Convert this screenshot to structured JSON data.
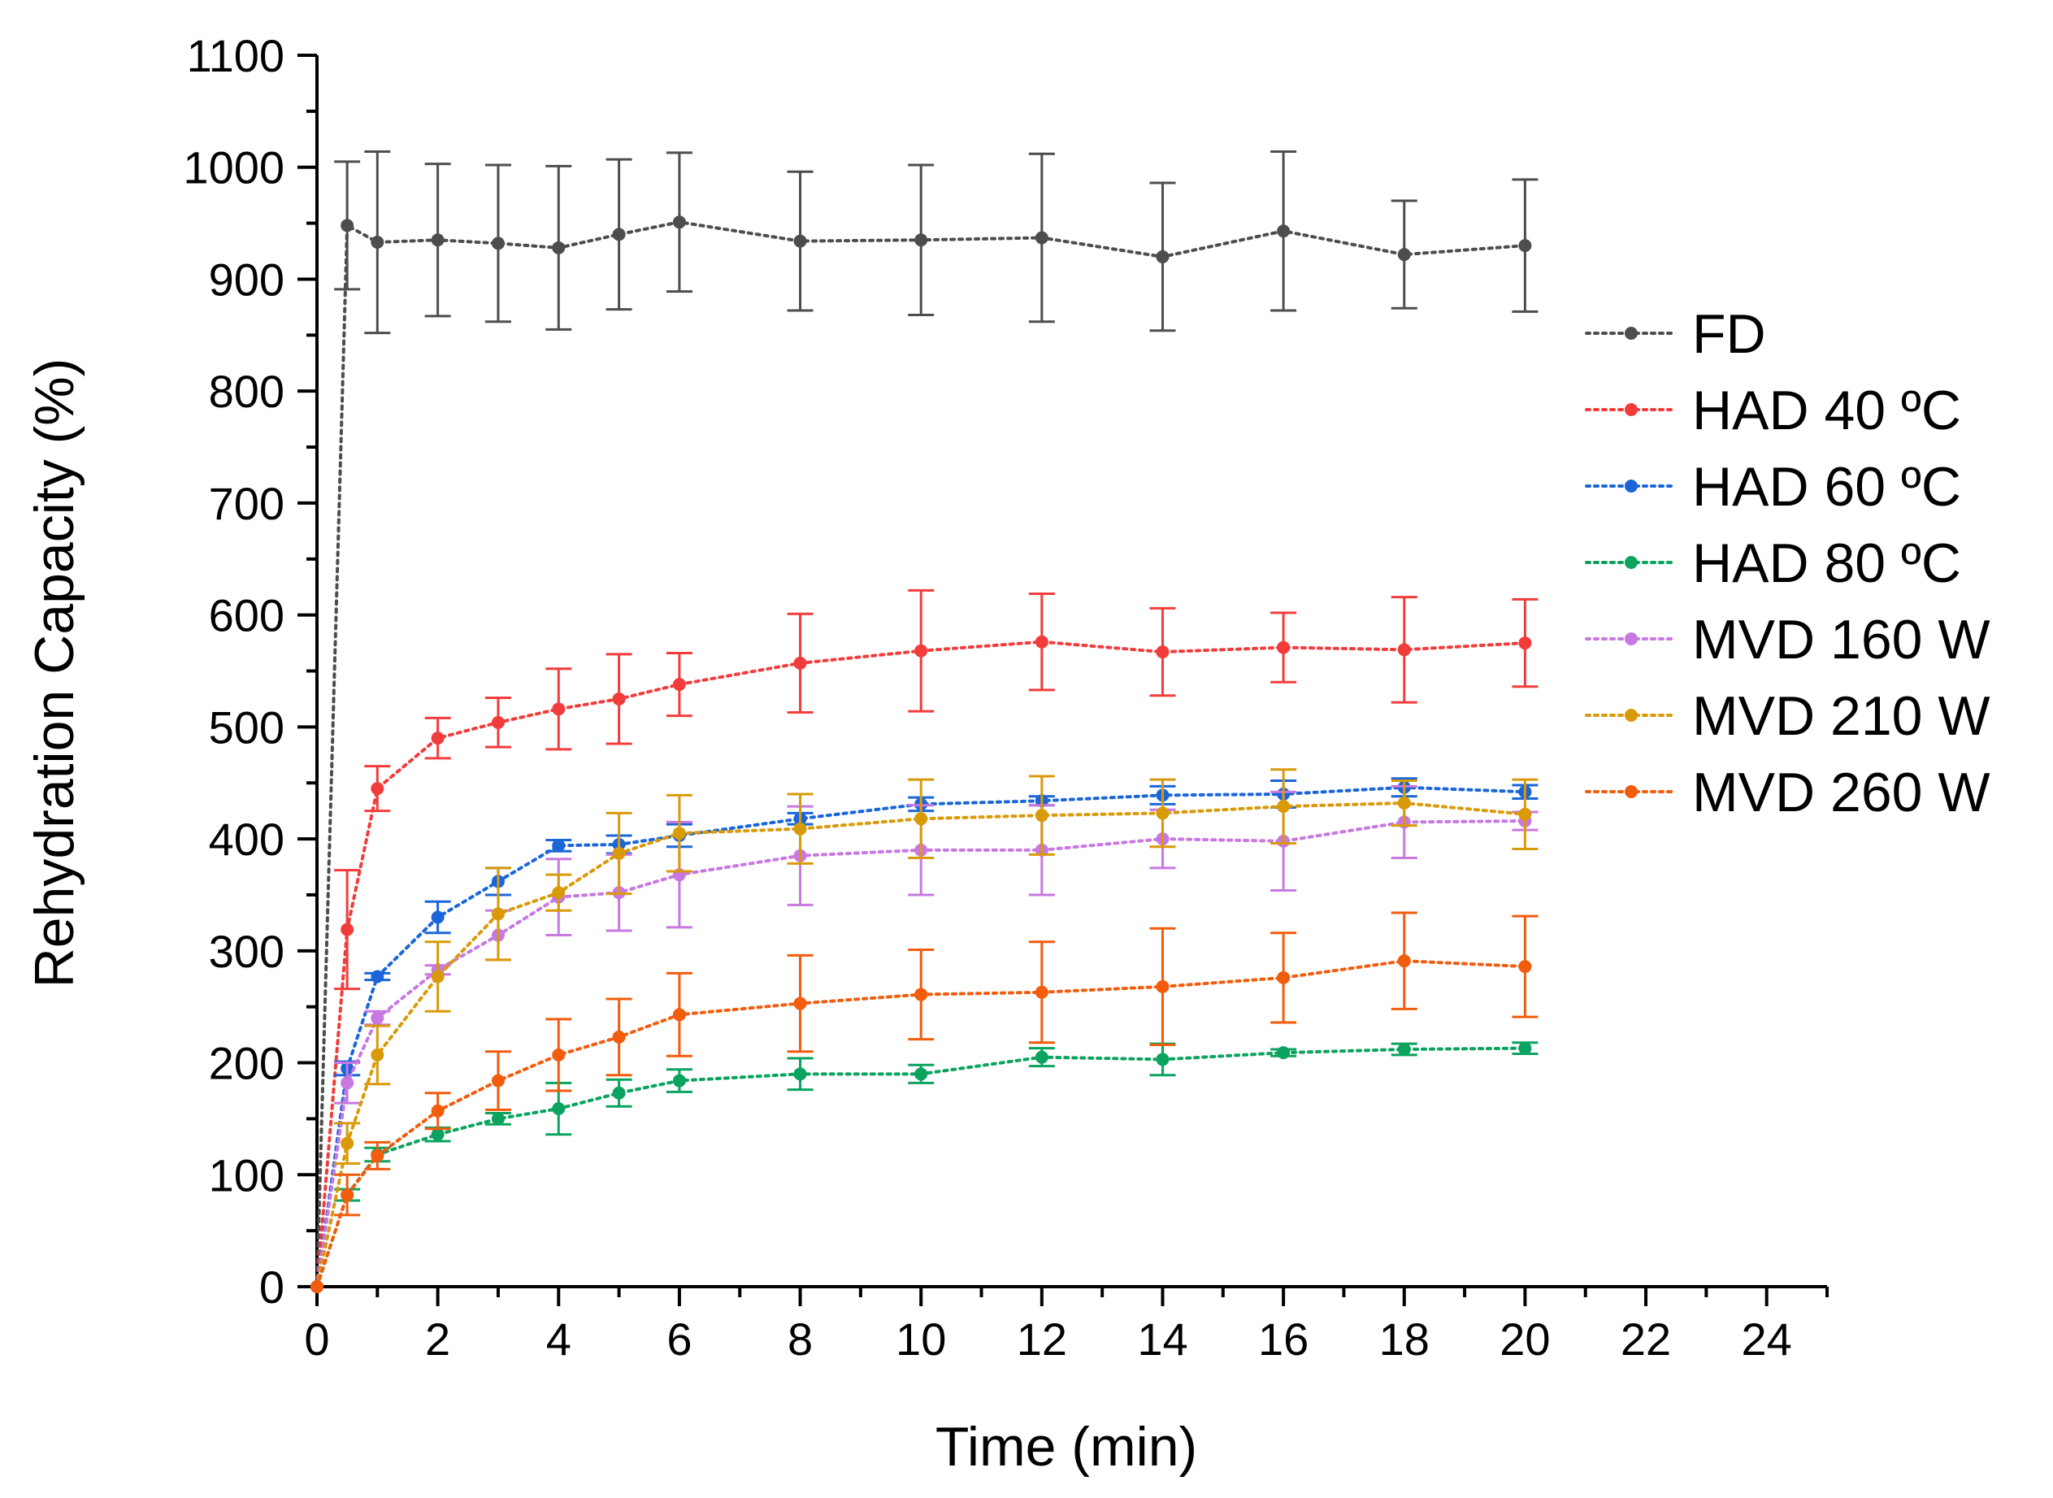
{
  "chart_data": {
    "type": "line",
    "title": "",
    "xlabel": "Time (min)",
    "ylabel": "Rehydration Capacity (%)",
    "xlim": [
      0,
      25
    ],
    "ylim": [
      0,
      1100
    ],
    "xticks": [
      0,
      2,
      4,
      6,
      8,
      10,
      12,
      14,
      16,
      18,
      20,
      22,
      24
    ],
    "yticks": [
      0,
      100,
      200,
      300,
      400,
      500,
      600,
      700,
      800,
      900,
      1000,
      1100
    ],
    "grid": false,
    "legend_position": "right",
    "x": [
      0,
      0.5,
      1,
      2,
      3,
      4,
      5,
      6,
      8,
      10,
      12,
      14,
      16,
      18,
      20
    ],
    "series": [
      {
        "name": "FD",
        "color": "#4d4d4d",
        "values": [
          0,
          948,
          933,
          935,
          932,
          928,
          940,
          951,
          934,
          935,
          937,
          920,
          943,
          922,
          930
        ],
        "errors": [
          0,
          57,
          81,
          68,
          70,
          73,
          67,
          62,
          62,
          67,
          75,
          66,
          71,
          48,
          59
        ]
      },
      {
        "name": "HAD 40 ºC",
        "color": "#f23c3c",
        "values": [
          0,
          319,
          445,
          490,
          504,
          516,
          525,
          538,
          557,
          568,
          576,
          567,
          571,
          569,
          575
        ],
        "errors": [
          0,
          53,
          20,
          18,
          22,
          36,
          40,
          28,
          44,
          54,
          43,
          39,
          31,
          47,
          39
        ]
      },
      {
        "name": "HAD 60 ºC",
        "color": "#1a66d9",
        "values": [
          0,
          195,
          277,
          330,
          362,
          394,
          395,
          403,
          418,
          431,
          434,
          439,
          440,
          446,
          442
        ],
        "errors": [
          0,
          6,
          3,
          14,
          12,
          5,
          8,
          10,
          5,
          6,
          4,
          8,
          12,
          8,
          6
        ]
      },
      {
        "name": "HAD 80 ºC",
        "color": "#0aa35f",
        "values": [
          0,
          82,
          118,
          136,
          150,
          159,
          173,
          184,
          190,
          190,
          205,
          203,
          209,
          212,
          213
        ],
        "errors": [
          0,
          5,
          6,
          6,
          5,
          23,
          12,
          10,
          14,
          8,
          8,
          14,
          3,
          5,
          5
        ]
      },
      {
        "name": "MVD 160 W",
        "color": "#c878e0",
        "values": [
          0,
          182,
          240,
          283,
          314,
          348,
          352,
          368,
          385,
          390,
          390,
          400,
          398,
          415,
          416
        ],
        "errors": [
          0,
          18,
          6,
          4,
          22,
          34,
          34,
          47,
          44,
          40,
          40,
          26,
          44,
          32,
          8
        ]
      },
      {
        "name": "MVD 210 W",
        "color": "#d99a0a",
        "values": [
          0,
          128,
          207,
          277,
          333,
          352,
          387,
          405,
          409,
          418,
          421,
          423,
          429,
          432,
          422
        ],
        "errors": [
          0,
          18,
          26,
          31,
          41,
          16,
          36,
          34,
          31,
          35,
          35,
          30,
          33,
          20,
          31
        ]
      },
      {
        "name": "MVD 260 W",
        "color": "#f25c0d",
        "values": [
          0,
          82,
          117,
          157,
          184,
          207,
          223,
          243,
          253,
          261,
          263,
          268,
          276,
          291,
          286
        ],
        "errors": [
          0,
          18,
          12,
          16,
          26,
          32,
          34,
          37,
          43,
          40,
          45,
          52,
          40,
          43,
          45
        ]
      }
    ]
  }
}
